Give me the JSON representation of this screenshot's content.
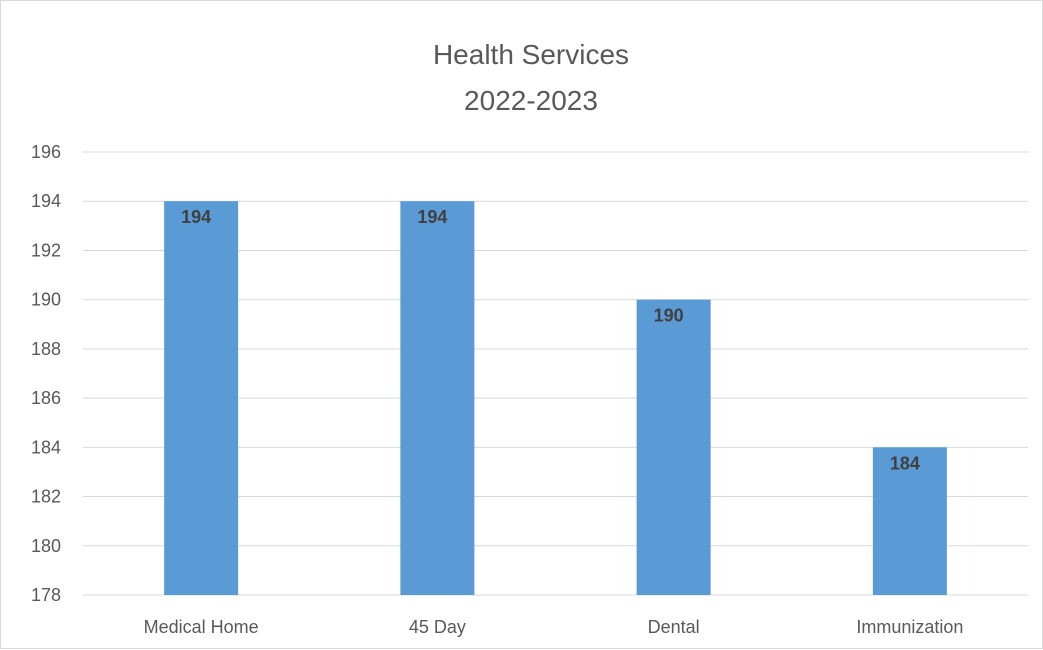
{
  "chart_data": {
    "type": "bar",
    "title": "Health Services",
    "subtitle": "2022-2023",
    "categories": [
      "Medical Home",
      "45 Day",
      "Dental",
      "Immunization"
    ],
    "values": [
      194,
      194,
      190,
      184
    ],
    "data_labels": [
      "194",
      "194",
      "190",
      "184"
    ],
    "ylim": [
      178,
      196
    ],
    "yticks": [
      178,
      180,
      182,
      184,
      186,
      188,
      190,
      192,
      194,
      196
    ],
    "grid": true,
    "legend": "none",
    "bar_color": "#5B9BD5",
    "grid_color": "#d9d9d9"
  }
}
